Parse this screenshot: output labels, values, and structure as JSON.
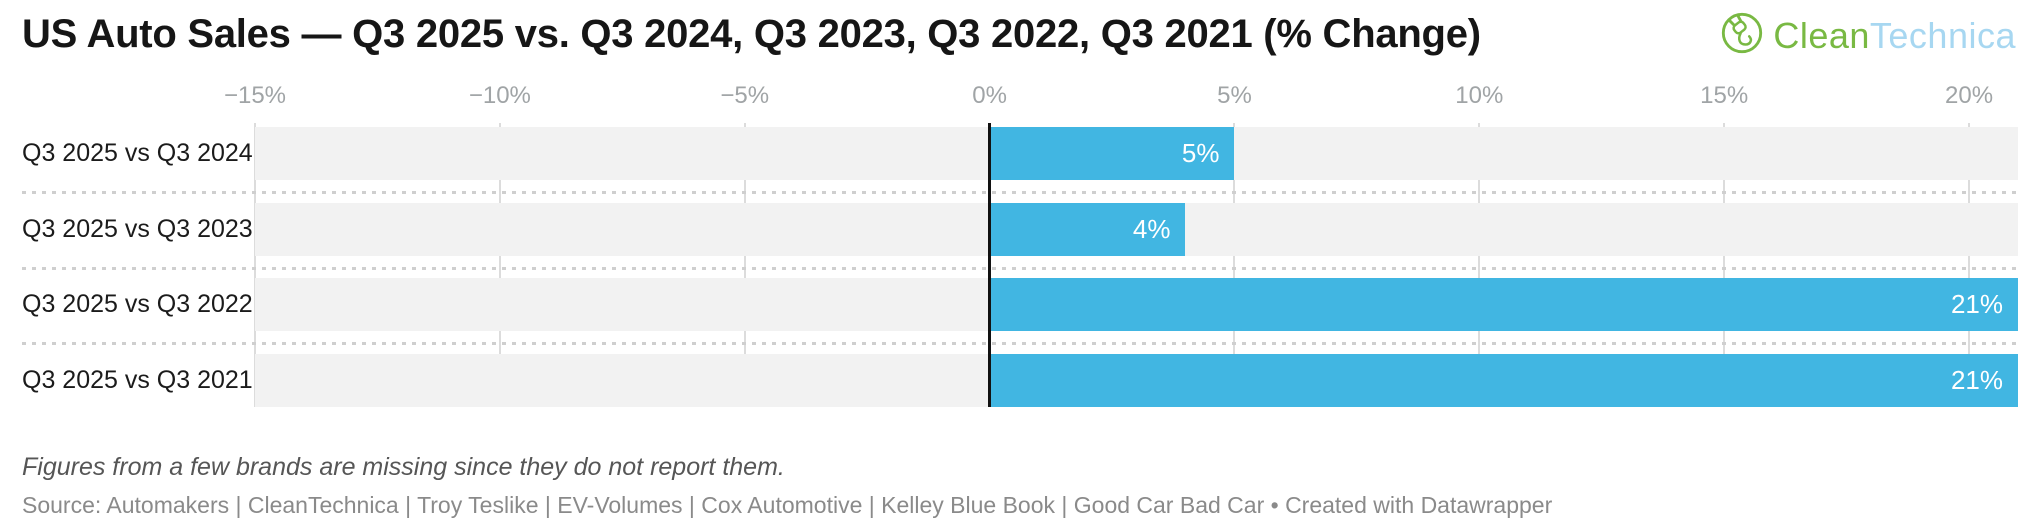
{
  "header": {
    "title": "US Auto Sales — Q3 2025 vs. Q3 2024, Q3 2023, Q3 2022, Q3 2021 (% Change)",
    "logo": {
      "icon": "plug-in-circle-icon",
      "clean": "Clean",
      "technica": "Technica",
      "green": "#79b943",
      "light_blue": "#a7d7f1"
    }
  },
  "chart_data": {
    "type": "bar",
    "orientation": "horizontal",
    "title": "US Auto Sales — Q3 2025 vs. Q3 2024, Q3 2023, Q3 2022, Q3 2021 (% Change)",
    "categories": [
      "Q3 2025 vs Q3 2024",
      "Q3 2025 vs Q3 2023",
      "Q3 2025 vs Q3 2022",
      "Q3 2025 vs Q3 2021"
    ],
    "values": [
      5,
      4,
      21,
      21
    ],
    "value_labels": [
      "5%",
      "4%",
      "21%",
      "21%"
    ],
    "unit": "%",
    "xlim": [
      -15,
      21
    ],
    "x_ticks": [
      {
        "value": -15,
        "label": "−15%"
      },
      {
        "value": -10,
        "label": "−10%"
      },
      {
        "value": -5,
        "label": "−5%"
      },
      {
        "value": 0,
        "label": "0%"
      },
      {
        "value": 5,
        "label": "5%"
      },
      {
        "value": 10,
        "label": "10%"
      },
      {
        "value": 15,
        "label": "15%"
      },
      {
        "value": 20,
        "label": "20%"
      }
    ],
    "grid": true,
    "legend": "none",
    "bar_color": "#41b6e2",
    "track_color": "#f2f2f2",
    "grid_color": "#dcdcdc",
    "zero_line_color": "#121212"
  },
  "footer": {
    "note": "Figures from a few brands are missing since they do not report them.",
    "source": "Source: Automakers | CleanTechnica | Troy Teslike | EV-Volumes | Cox Automotive | Kelley Blue Book | Good Car Bad Car • Created with Datawrapper"
  }
}
